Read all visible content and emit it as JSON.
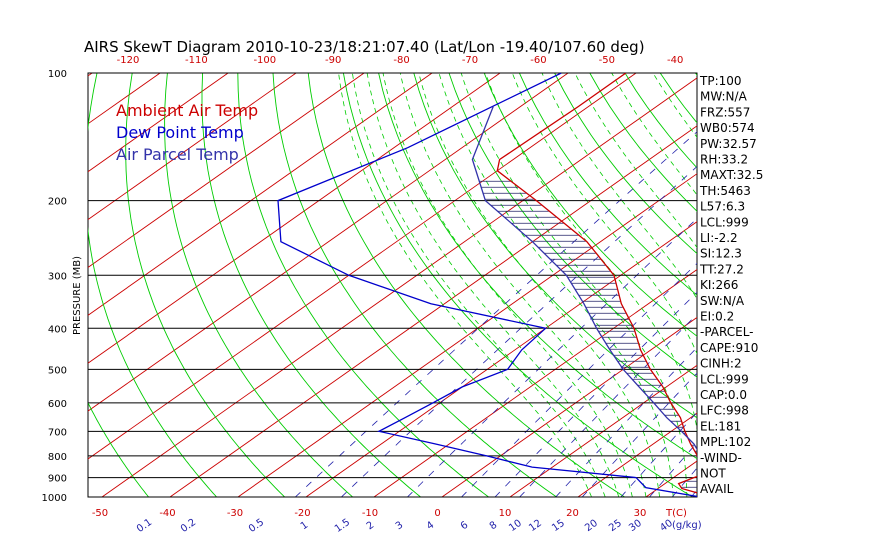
{
  "chart_data": {
    "type": "line",
    "title": "AIRS SkewT Diagram 2010-10-23/18:21:07.40 (Lat/Lon -19.40/107.60 deg)",
    "ylabel": "PRESSURE (MB)",
    "pressure_ticks": [
      "100",
      "200",
      "300",
      "400",
      "500",
      "600",
      "700",
      "800",
      "900",
      "1000"
    ],
    "top_temp_ticks": [
      "-120",
      "-110",
      "-100",
      "-90",
      "-80",
      "-70",
      "-60",
      "-50",
      "-40"
    ],
    "bottom_temp_ticks": [
      "-50",
      "-40",
      "-30",
      "-20",
      "-10",
      "0",
      "10",
      "20",
      "30"
    ],
    "bottom_temp_unit": "T(C)",
    "mixing_ratio_ticks": [
      "0.1",
      "0.2",
      "0.5",
      "1",
      "1.5",
      "2",
      "3",
      "4",
      "6",
      "8",
      "10",
      "12",
      "15",
      "20",
      "25",
      "30",
      "40"
    ],
    "mixing_ratio_unit": "(g/kg)",
    "legend": [
      {
        "label": "Ambient Air Temp",
        "color": "#cc0000"
      },
      {
        "label": "Dew Point Temp",
        "color": "#0000cc"
      },
      {
        "label": "Air Parcel Temp",
        "color": "#3333aa"
      }
    ],
    "series": [
      {
        "name": "Ambient Air Temp",
        "color": "#cc0000",
        "points": [
          [
            100,
            -81.5
          ],
          [
            120,
            -81.5
          ],
          [
            160,
            -82
          ],
          [
            170,
            -80
          ],
          [
            200,
            -68
          ],
          [
            250,
            -52
          ],
          [
            300,
            -41
          ],
          [
            350,
            -34
          ],
          [
            400,
            -27
          ],
          [
            450,
            -21.5
          ],
          [
            500,
            -16
          ],
          [
            550,
            -10.5
          ],
          [
            600,
            -6
          ],
          [
            650,
            -1.5
          ],
          [
            700,
            2
          ],
          [
            750,
            5.5
          ],
          [
            800,
            9
          ],
          [
            850,
            12
          ],
          [
            880,
            14
          ],
          [
            900,
            13
          ],
          [
            930,
            12
          ],
          [
            955,
            13.5
          ],
          [
            980,
            17
          ],
          [
            1000,
            20
          ]
        ]
      },
      {
        "name": "Dew Point Temp",
        "color": "#0000cc",
        "points": [
          [
            100,
            -91
          ],
          [
            150,
            -98
          ],
          [
            200,
            -106
          ],
          [
            250,
            -97
          ],
          [
            300,
            -80
          ],
          [
            350,
            -62
          ],
          [
            400,
            -40
          ],
          [
            450,
            -39
          ],
          [
            500,
            -37
          ],
          [
            550,
            -40
          ],
          [
            600,
            -41
          ],
          [
            650,
            -42
          ],
          [
            700,
            -43
          ],
          [
            750,
            -32
          ],
          [
            800,
            -22
          ],
          [
            850,
            -13
          ],
          [
            900,
            4.5
          ],
          [
            950,
            8
          ],
          [
            1000,
            18
          ]
        ]
      },
      {
        "name": "Air Parcel Temp",
        "color": "#3333aa",
        "points": [
          [
            120,
            -94
          ],
          [
            160,
            -86
          ],
          [
            200,
            -75.5
          ],
          [
            250,
            -60
          ],
          [
            300,
            -48
          ],
          [
            350,
            -39.5
          ],
          [
            400,
            -32.5
          ],
          [
            450,
            -26
          ],
          [
            500,
            -20
          ],
          [
            550,
            -14
          ],
          [
            600,
            -8.5
          ],
          [
            650,
            -3.5
          ],
          [
            700,
            1.5
          ],
          [
            750,
            6
          ],
          [
            800,
            9.5
          ],
          [
            850,
            12.5
          ],
          [
            900,
            15
          ],
          [
            950,
            18
          ],
          [
            1000,
            21
          ]
        ]
      }
    ],
    "indices": [
      "TP:100",
      "MW:N/A",
      "FRZ:557",
      "WB0:574",
      "PW:32.57",
      "RH:33.2",
      "MAXT:32.5",
      "TH:5463",
      "L57:6.3",
      "LCL:999",
      "LI:-2.2",
      "SI:12.3",
      "TT:27.2",
      "KI:266",
      "SW:N/A",
      "EI:0.2",
      "-PARCEL-",
      "CAPE:910",
      "CINH:2",
      "LCL:999",
      "CAP:0.0",
      "LFC:998",
      "EL:181",
      "MPL:102",
      "-WIND-",
      "NOT",
      "AVAIL"
    ],
    "colors": {
      "dry_adiabat": "#00cc00",
      "isotherm": "#cc0000",
      "mixing_ratio": "#2222aa",
      "moist_adiabat": "#00cc00",
      "parcel_hatch": "#222266",
      "isobar": "#000000",
      "frame": "#000000"
    },
    "grid": true
  }
}
